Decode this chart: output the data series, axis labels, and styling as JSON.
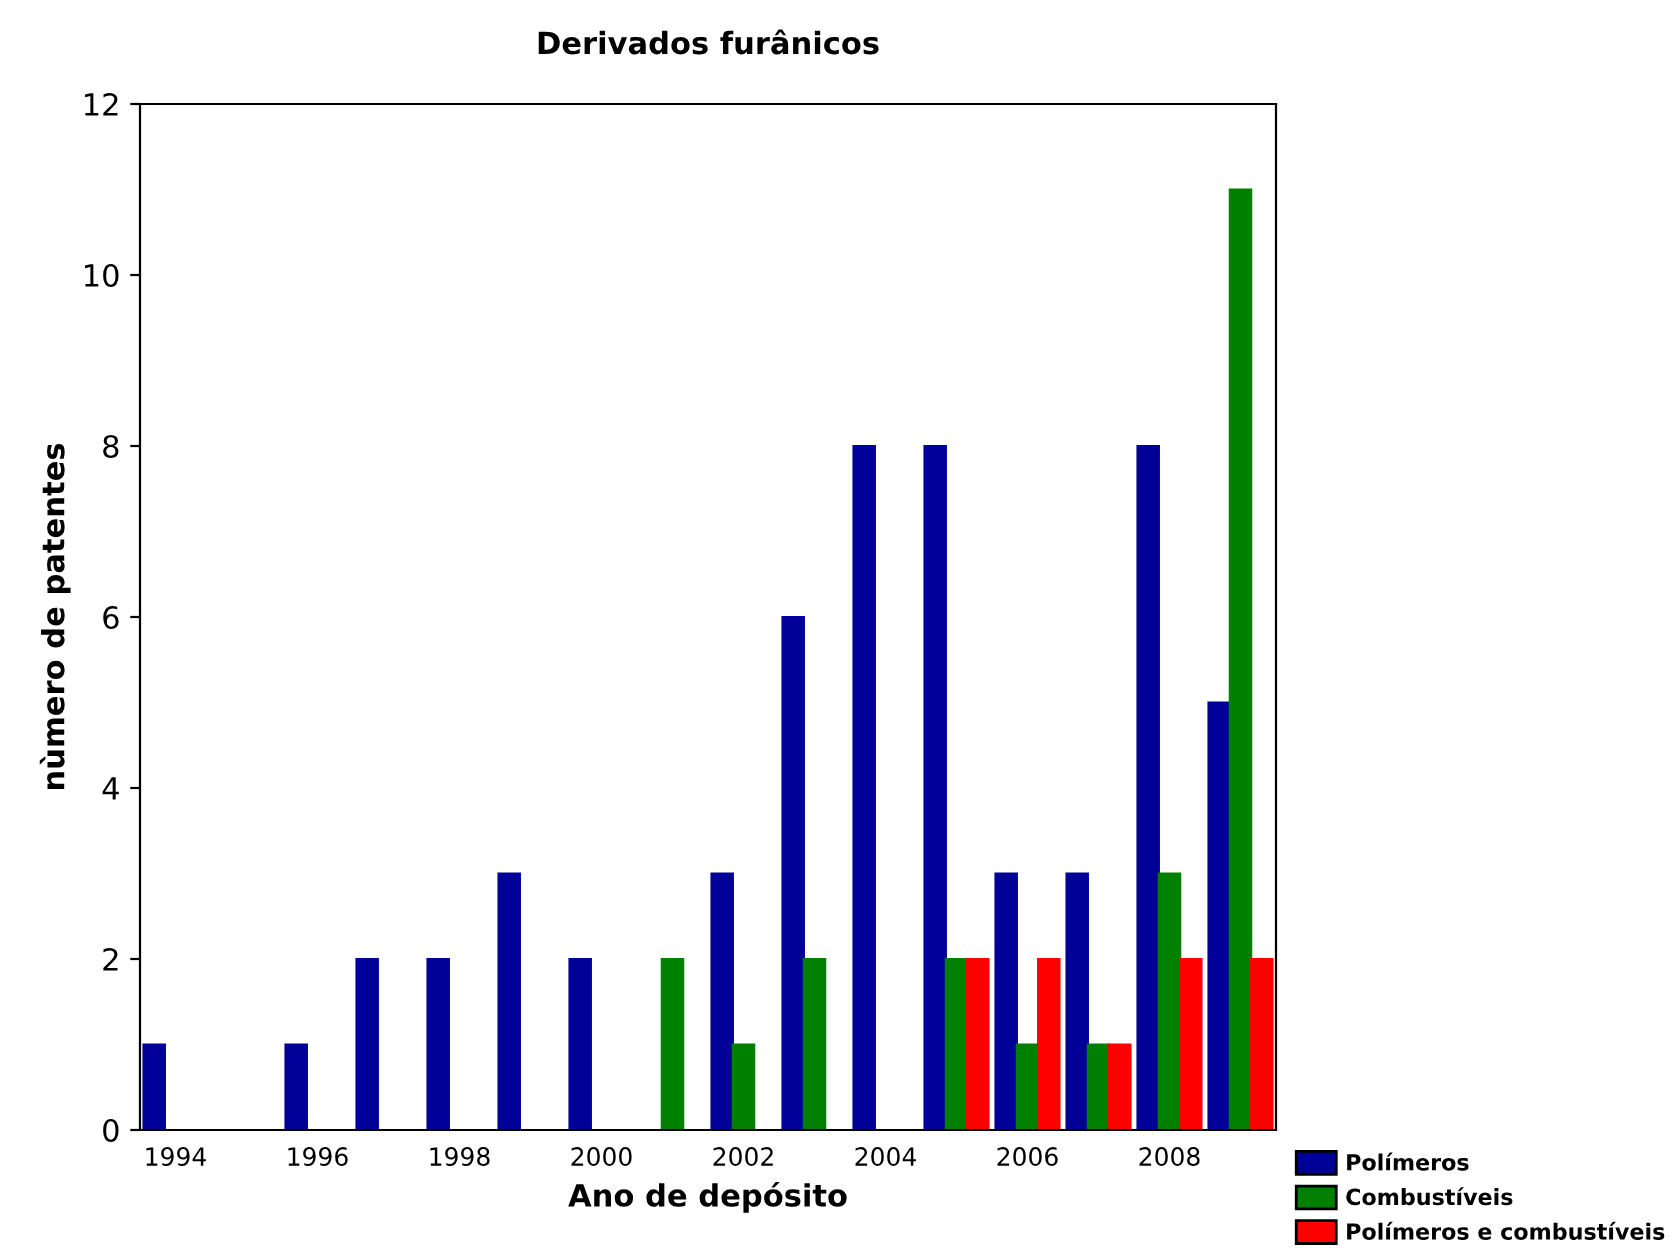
{
  "chart_data": {
    "type": "bar",
    "title": "Derivados furânicos",
    "xlabel": "Ano de depósito",
    "ylabel": "nùmero de patentes",
    "categories": [
      "1994",
      null,
      "1996",
      null,
      "1998",
      null,
      "2000",
      null,
      "2002",
      null,
      "2004",
      null,
      "2006",
      null,
      "2008",
      null
    ],
    "series": [
      {
        "name": "Polímeros",
        "color": "#000099",
        "values": [
          1,
          0,
          1,
          2,
          2,
          3,
          2,
          0,
          3,
          6,
          8,
          8,
          3,
          3,
          8,
          5
        ]
      },
      {
        "name": "Combustíveis",
        "color": "#008000",
        "values": [
          0,
          0,
          0,
          0,
          0,
          0,
          0,
          2,
          1,
          2,
          0,
          2,
          1,
          1,
          3,
          11
        ]
      },
      {
        "name": "Polímeros e combustíveis",
        "color": "#ff0000",
        "values": [
          0,
          0,
          0,
          0,
          0,
          0,
          0,
          0,
          0,
          0,
          0,
          2,
          2,
          1,
          2,
          2
        ]
      }
    ],
    "ylim": [
      0,
      12
    ],
    "yticks": [
      0,
      2,
      4,
      6,
      8,
      10,
      12
    ],
    "grid": false,
    "legend": "bottom right"
  }
}
